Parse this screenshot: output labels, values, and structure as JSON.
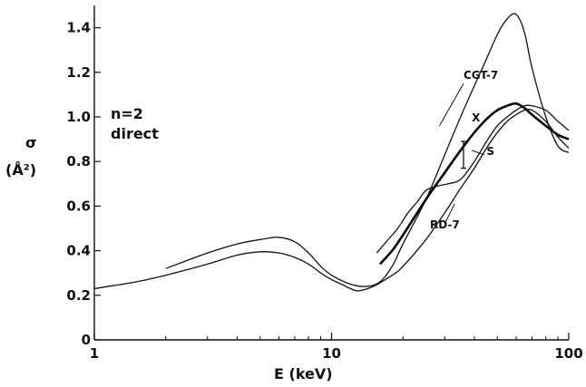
{
  "chart_data": {
    "type": "line",
    "title": "",
    "xlabel": "E (keV)",
    "ylabel": "σ",
    "ylabel_unit": "(Å²)",
    "xscale": "log",
    "xlim": [
      1,
      100
    ],
    "ylim": [
      0,
      1.5
    ],
    "x_ticks": [
      {
        "value": 1,
        "label": "1"
      },
      {
        "value": 10,
        "label": "10"
      },
      {
        "value": 100,
        "label": "100"
      }
    ],
    "y_ticks": [
      {
        "value": 0,
        "label": "0"
      },
      {
        "value": 0.2,
        "label": "0.2"
      },
      {
        "value": 0.4,
        "label": "0.4"
      },
      {
        "value": 0.6,
        "label": "0.6"
      },
      {
        "value": 0.8,
        "label": "0.8"
      },
      {
        "value": 1.0,
        "label": "1.0"
      },
      {
        "value": 1.2,
        "label": "1.2"
      },
      {
        "value": 1.4,
        "label": "1.4"
      }
    ],
    "grid": false,
    "annotation_lines": [
      "n=2",
      "direct"
    ],
    "series": [
      {
        "name": "CGT-7",
        "label_at": {
          "x": 36,
          "y": 1.17
        },
        "color": "#111111",
        "x": [
          2,
          3,
          4,
          5,
          6,
          7,
          8,
          9,
          10,
          12,
          14,
          16,
          18,
          20,
          25,
          30,
          35,
          40,
          45,
          50,
          55,
          60,
          65,
          70,
          80,
          90,
          100
        ],
        "y": [
          0.32,
          0.39,
          0.43,
          0.45,
          0.46,
          0.44,
          0.39,
          0.33,
          0.29,
          0.25,
          0.24,
          0.26,
          0.33,
          0.43,
          0.63,
          0.83,
          1.0,
          1.14,
          1.26,
          1.37,
          1.44,
          1.46,
          1.38,
          1.22,
          1.0,
          0.87,
          0.84
        ]
      },
      {
        "name": "X",
        "label_at": {
          "x": 39,
          "y": 0.98
        },
        "color": "#000000",
        "x": [
          16,
          18,
          20,
          25,
          30,
          35,
          40,
          45,
          50,
          55,
          60,
          65,
          70,
          80,
          90,
          100
        ],
        "y": [
          0.34,
          0.4,
          0.47,
          0.63,
          0.75,
          0.85,
          0.93,
          0.99,
          1.03,
          1.05,
          1.06,
          1.04,
          1.01,
          0.96,
          0.92,
          0.9
        ]
      },
      {
        "name": "S",
        "label_at": {
          "x": 45,
          "y": 0.83
        },
        "color": "#111111",
        "x": [
          15.5,
          17,
          19,
          21,
          23,
          25,
          28,
          31,
          35,
          40,
          45,
          50,
          55,
          60,
          65,
          70,
          80,
          90,
          100
        ],
        "y": [
          0.39,
          0.44,
          0.5,
          0.57,
          0.62,
          0.67,
          0.69,
          0.7,
          0.72,
          0.8,
          0.89,
          0.96,
          1.0,
          1.03,
          1.05,
          1.05,
          1.03,
          0.98,
          0.94
        ]
      },
      {
        "name": "RD-7",
        "label_at": {
          "x": 26,
          "y": 0.5
        },
        "color": "#111111",
        "x": [
          1,
          1.5,
          2,
          3,
          4,
          5,
          6,
          7,
          8,
          9,
          10,
          11,
          12,
          13,
          15,
          18,
          20,
          25,
          30,
          35,
          40,
          45,
          50,
          55,
          60,
          65,
          70,
          80,
          90,
          100
        ],
        "y": [
          0.23,
          0.26,
          0.29,
          0.34,
          0.38,
          0.395,
          0.39,
          0.37,
          0.34,
          0.3,
          0.27,
          0.25,
          0.23,
          0.22,
          0.24,
          0.29,
          0.33,
          0.45,
          0.57,
          0.68,
          0.77,
          0.86,
          0.93,
          0.98,
          1.01,
          1.03,
          1.03,
          0.98,
          0.91,
          0.86
        ]
      }
    ],
    "error_bar": {
      "x": 36,
      "y": 0.83,
      "low": 0.77,
      "high": 0.89
    }
  }
}
